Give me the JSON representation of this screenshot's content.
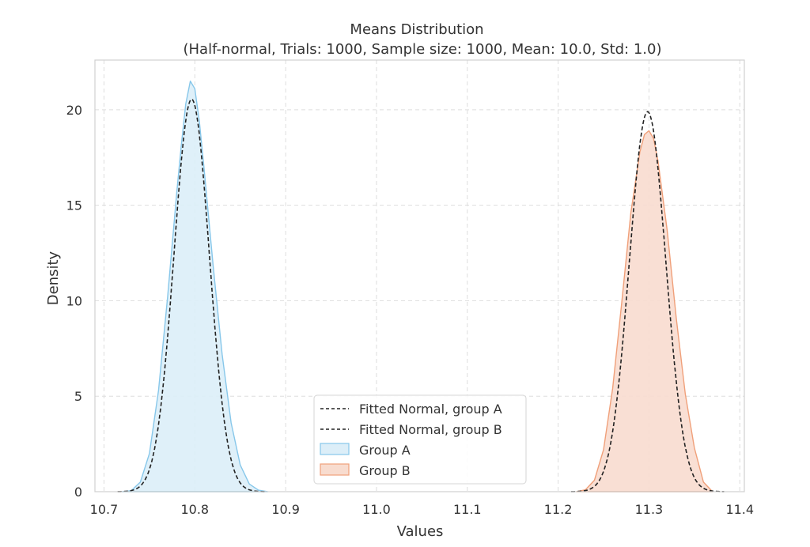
{
  "chart_data": {
    "type": "area",
    "title": "Means Distribution",
    "subtitle": "(Half-normal, Trials: 1000, Sample size: 1000, Mean: 10.0, Std: 1.0)",
    "xlabel": "Values",
    "ylabel": "Density",
    "xlim": [
      10.69,
      11.405
    ],
    "ylim": [
      0,
      22.6
    ],
    "xticks": [
      10.7,
      10.8,
      10.9,
      11.0,
      11.1,
      11.2,
      11.3,
      11.4
    ],
    "xtick_labels": [
      "10.7",
      "10.8",
      "10.9",
      "11.0",
      "11.1",
      "11.2",
      "11.3",
      "11.4"
    ],
    "yticks": [
      0,
      5,
      10,
      15,
      20
    ],
    "ytick_labels": [
      "0",
      "5",
      "10",
      "15",
      "20"
    ],
    "grid": true,
    "legend_position": "bottom-center",
    "series": [
      {
        "name": "Fitted Normal, group A",
        "kind": "line",
        "style": "dashed",
        "color": "#222222",
        "mean": 10.7965,
        "peak": 20.55
      },
      {
        "name": "Fitted Normal, group B",
        "kind": "line",
        "style": "dashed",
        "color": "#222222",
        "mean": 11.2985,
        "peak": 19.9
      },
      {
        "name": "Group A",
        "kind": "kde_fill",
        "color": "#87c7ea",
        "fill": "#dceef8",
        "x": [
          10.72,
          10.73,
          10.74,
          10.75,
          10.76,
          10.77,
          10.78,
          10.785,
          10.79,
          10.795,
          10.8,
          10.805,
          10.81,
          10.82,
          10.83,
          10.84,
          10.85,
          10.86,
          10.87,
          10.88
        ],
        "y": [
          0.0,
          0.05,
          0.5,
          2.0,
          5.3,
          10.2,
          15.6,
          18.1,
          20.3,
          21.5,
          21.1,
          19.4,
          17.0,
          11.9,
          7.2,
          3.6,
          1.4,
          0.4,
          0.08,
          0.0
        ]
      },
      {
        "name": "Group B",
        "kind": "kde_fill",
        "color": "#f0a07a",
        "fill": "#f8dccf",
        "x": [
          11.22,
          11.23,
          11.24,
          11.25,
          11.26,
          11.27,
          11.28,
          11.29,
          11.295,
          11.3,
          11.305,
          11.31,
          11.32,
          11.33,
          11.34,
          11.35,
          11.36,
          11.37
        ],
        "y": [
          0.0,
          0.1,
          0.6,
          2.2,
          5.4,
          9.9,
          14.6,
          17.8,
          18.7,
          18.9,
          18.5,
          17.3,
          13.7,
          9.1,
          5.1,
          2.3,
          0.5,
          0.0
        ]
      }
    ]
  }
}
